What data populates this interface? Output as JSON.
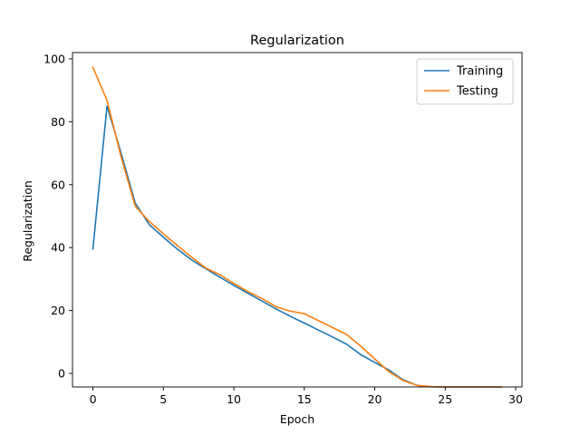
{
  "chart_data": {
    "type": "line",
    "title": "Regularization",
    "xlabel": "Epoch",
    "ylabel": "Regularization",
    "xlim": [
      -1.45,
      30.45
    ],
    "ylim": [
      -4.3,
      102.0
    ],
    "xticks": [
      0,
      5,
      10,
      15,
      20,
      25,
      30
    ],
    "yticks": [
      0,
      20,
      40,
      60,
      80,
      100
    ],
    "grid": false,
    "legend_position": "upper-right",
    "x": [
      0,
      1,
      2,
      3,
      4,
      5,
      6,
      7,
      8,
      9,
      10,
      11,
      12,
      13,
      14,
      15,
      16,
      17,
      18,
      19,
      20,
      21,
      22,
      23,
      24,
      25,
      26,
      27,
      28,
      29
    ],
    "series": [
      {
        "name": "Training",
        "color": "#1f77b4",
        "values": [
          39.6,
          85.0,
          70.0,
          54.2,
          47.3,
          43.3,
          39.5,
          36.1,
          33.3,
          30.6,
          28.0,
          25.5,
          23.0,
          20.5,
          18.2,
          16.0,
          13.8,
          11.6,
          9.3,
          6.0,
          3.5,
          1.1,
          -2.0,
          -3.8,
          -4.2,
          -4.3,
          -4.3,
          -4.3,
          -4.3,
          -4.3
        ]
      },
      {
        "name": "Testing",
        "color": "#ff7f0e",
        "values": [
          97.3,
          86.8,
          68.8,
          53.2,
          48.3,
          44.4,
          40.6,
          37.0,
          33.5,
          31.4,
          28.6,
          26.0,
          23.8,
          21.2,
          19.8,
          19.0,
          16.8,
          14.6,
          12.4,
          8.7,
          4.6,
          0.6,
          -2.2,
          -3.8,
          -4.2,
          -4.3,
          -4.3,
          -4.3,
          -4.3,
          -4.3
        ]
      }
    ]
  }
}
